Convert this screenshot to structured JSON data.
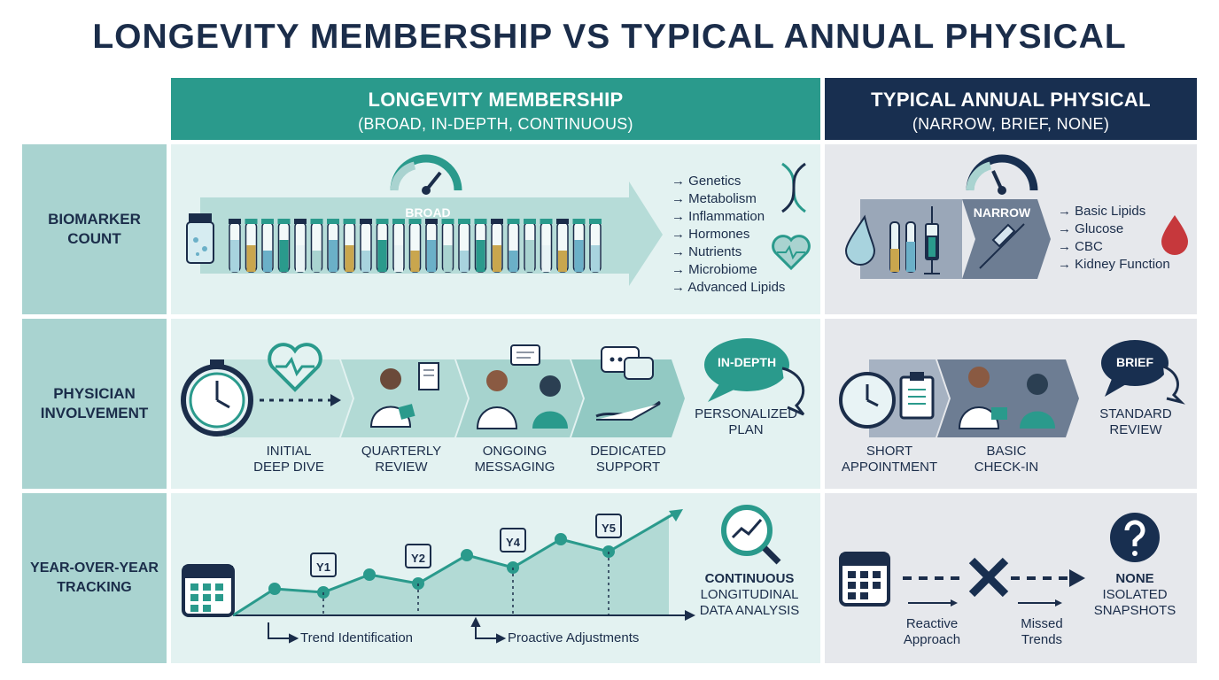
{
  "title": "LONGEVITY MEMBERSHIP VS TYPICAL ANNUAL PHYSICAL",
  "columns": {
    "longevity": {
      "name": "LONGEVITY MEMBERSHIP",
      "sub": "(BROAD, IN-DEPTH, CONTINUOUS)"
    },
    "typical": {
      "name": "TYPICAL ANNUAL PHYSICAL",
      "sub": "(NARROW, BRIEF, NONE)"
    }
  },
  "rows": {
    "biomarker": {
      "label": "BIOMARKER COUNT",
      "long_badge": "BROAD",
      "long_items": [
        "Genetics",
        "Metabolism",
        "Inflammation",
        "Hormones",
        "Nutrients",
        "Microbiome",
        "Advanced Lipids"
      ],
      "typ_badge": "NARROW",
      "typ_items": [
        "Basic Lipids",
        "Glucose",
        "CBC",
        "Kidney Function"
      ]
    },
    "physician": {
      "label": "PHYSICIAN INVOLVEMENT",
      "long_steps": [
        "INITIAL DEEP DIVE",
        "QUARTERLY REVIEW",
        "ONGOING MESSAGING",
        "DEDICATED SUPPORT"
      ],
      "long_bubble": "IN-DEPTH",
      "long_result": "PERSONALIZED PLAN",
      "typ_steps": [
        "SHORT APPOINTMENT",
        "BASIC CHECK-IN"
      ],
      "typ_bubble": "BRIEF",
      "typ_result": "STANDARD REVIEW"
    },
    "tracking": {
      "label": "YEAR-OVER-YEAR TRACKING",
      "years": [
        "Y1",
        "Y2",
        "Y4",
        "Y5"
      ],
      "notes": [
        "Trend Identification",
        "Proactive Adjustments"
      ],
      "long_result_bold": "CONTINUOUS",
      "long_result": "LONGITUDINAL DATA ANALYSIS",
      "typ_notes": [
        "Reactive Approach",
        "Missed Trends"
      ],
      "typ_result_bold": "NONE",
      "typ_result": "ISOLATED SNAPSHOTS"
    }
  },
  "colors": {
    "teal": "#2a9a8c",
    "navy": "#182f50",
    "label_bg": "#a9d3d0",
    "long_bg": "#e3f2f1",
    "typ_bg": "#e6e8ec"
  }
}
